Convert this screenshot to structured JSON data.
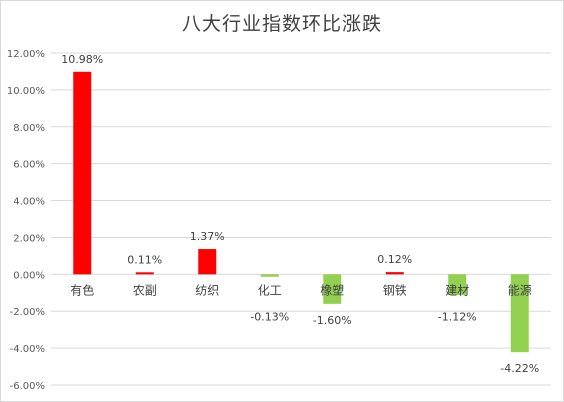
{
  "chart_data": {
    "type": "bar",
    "title": "八大行业指数环比涨跌",
    "xlabel": "",
    "ylabel": "",
    "ylim": [
      -6,
      12
    ],
    "y_ticks": [
      "12.00%",
      "10.00%",
      "8.00%",
      "6.00%",
      "4.00%",
      "2.00%",
      "0.00%",
      "-2.00%",
      "-4.00%",
      "-6.00%"
    ],
    "grid": true,
    "legend": "none",
    "categories": [
      "有色",
      "农副",
      "纺织",
      "化工",
      "橡塑",
      "钢铁",
      "建材",
      "能源"
    ],
    "values": [
      10.98,
      0.11,
      1.37,
      -0.13,
      -1.6,
      0.12,
      -1.12,
      -4.22
    ],
    "data_labels": [
      "10.98%",
      "0.11%",
      "1.37%",
      "-0.13%",
      "-1.60%",
      "0.12%",
      "-1.12%",
      "-4.22%"
    ],
    "colors": {
      "positive": "#ff0000",
      "negative": "#92d050",
      "grid": "#d9d9d9"
    }
  }
}
